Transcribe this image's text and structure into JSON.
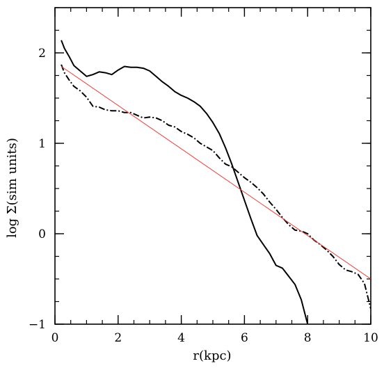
{
  "chart_data": {
    "type": "line",
    "xlabel": "r(kpc)",
    "ylabel": "log Σ(sim units)",
    "xlim": [
      0,
      10
    ],
    "ylim": [
      -1,
      2.5
    ],
    "grid": false,
    "x_ticks": [
      0,
      2,
      4,
      6,
      8,
      10
    ],
    "y_ticks": [
      -1,
      0,
      1,
      2
    ],
    "x_tick_labels": [
      "0",
      "2",
      "4",
      "6",
      "8",
      "10"
    ],
    "y_tick_labels": [
      "−1",
      "0",
      "1",
      "2"
    ],
    "x_minor_step": 0.5,
    "y_minor_step": 0.25,
    "series": [
      {
        "style": "solid",
        "color": "#000000",
        "x": [
          0.2,
          0.3,
          0.45,
          0.6,
          0.8,
          1.0,
          1.2,
          1.4,
          1.6,
          1.8,
          2.0,
          2.2,
          2.4,
          2.6,
          2.8,
          3.0,
          3.2,
          3.4,
          3.6,
          3.8,
          4.0,
          4.2,
          4.4,
          4.6,
          4.8,
          5.0,
          5.2,
          5.4,
          5.6,
          5.8,
          6.0,
          6.2,
          6.4,
          6.6,
          6.8,
          7.0,
          7.2,
          7.4,
          7.6,
          7.8,
          8.0
        ],
        "y": [
          2.14,
          2.05,
          1.96,
          1.86,
          1.8,
          1.74,
          1.76,
          1.79,
          1.78,
          1.76,
          1.81,
          1.85,
          1.84,
          1.84,
          1.83,
          1.8,
          1.74,
          1.68,
          1.63,
          1.57,
          1.53,
          1.5,
          1.46,
          1.41,
          1.33,
          1.23,
          1.11,
          0.95,
          0.77,
          0.57,
          0.37,
          0.17,
          -0.02,
          -0.12,
          -0.22,
          -0.35,
          -0.38,
          -0.47,
          -0.56,
          -0.73,
          -1.0
        ]
      },
      {
        "style": "dash-dot",
        "color": "#000000",
        "x": [
          0.2,
          0.3,
          0.45,
          0.6,
          0.8,
          1.0,
          1.2,
          1.4,
          1.6,
          1.8,
          2.0,
          2.2,
          2.4,
          2.6,
          2.8,
          3.0,
          3.2,
          3.4,
          3.6,
          3.8,
          4.0,
          4.2,
          4.4,
          4.6,
          4.8,
          5.0,
          5.2,
          5.4,
          5.6,
          5.8,
          6.0,
          6.2,
          6.4,
          6.6,
          6.8,
          7.0,
          7.2,
          7.4,
          7.6,
          7.8,
          8.0,
          8.2,
          8.4,
          8.6,
          8.8,
          9.0,
          9.2,
          9.4,
          9.6,
          9.8,
          10.0
        ],
        "y": [
          1.87,
          1.78,
          1.7,
          1.63,
          1.58,
          1.51,
          1.41,
          1.4,
          1.37,
          1.36,
          1.36,
          1.34,
          1.34,
          1.31,
          1.28,
          1.29,
          1.28,
          1.25,
          1.2,
          1.18,
          1.13,
          1.1,
          1.06,
          1.0,
          0.96,
          0.92,
          0.84,
          0.77,
          0.74,
          0.68,
          0.62,
          0.57,
          0.51,
          0.44,
          0.35,
          0.27,
          0.18,
          0.1,
          0.04,
          0.03,
          0.0,
          -0.07,
          -0.12,
          -0.18,
          -0.25,
          -0.34,
          -0.4,
          -0.42,
          -0.45,
          -0.55,
          -0.83
        ]
      },
      {
        "style": "fit",
        "color": "#e8413a",
        "x": [
          0.2,
          10.0
        ],
        "y": [
          1.85,
          -0.5
        ]
      }
    ]
  }
}
